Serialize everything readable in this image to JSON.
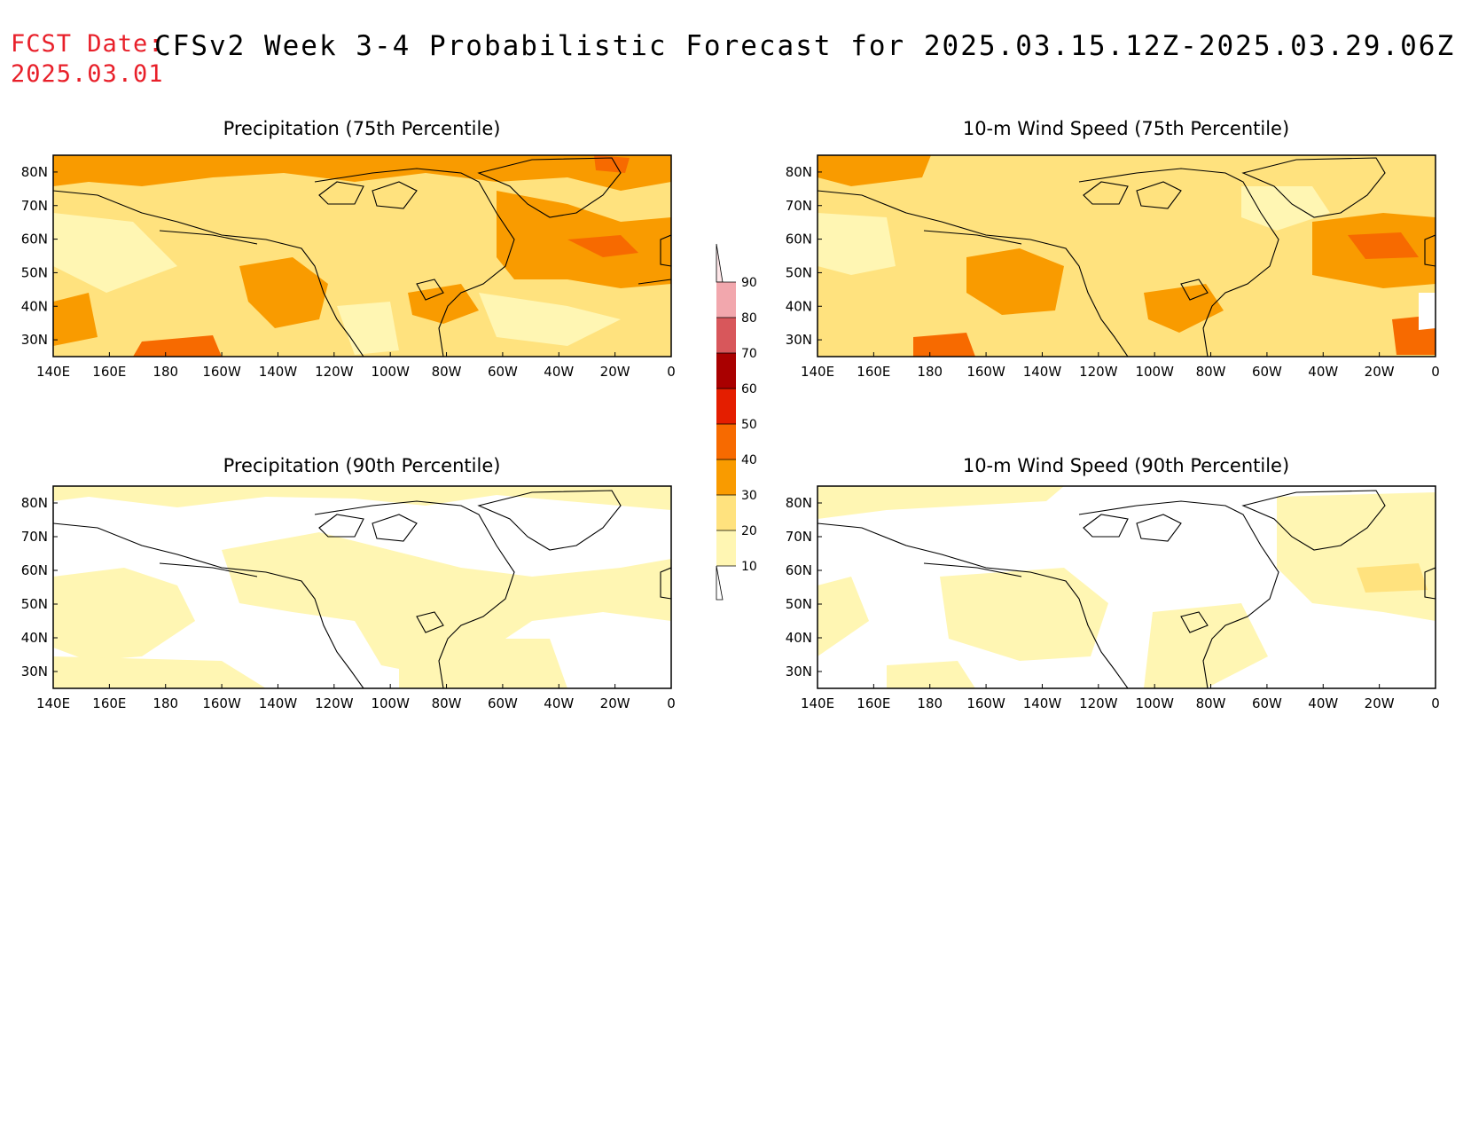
{
  "header": {
    "fcst_label": "FCST Date:",
    "fcst_date": "2025.03.01",
    "title": "CFSv2 Week 3-4 Probabilistic Forecast for 2025.03.15.12Z-2025.03.29.06Z"
  },
  "panels": [
    {
      "title": "Precipitation (75th Percentile)"
    },
    {
      "title": "10-m Wind Speed (75th Percentile)"
    },
    {
      "title": "Precipitation (90th Percentile)"
    },
    {
      "title": "10-m Wind Speed (90th Percentile)"
    }
  ],
  "axes": {
    "lon_labels": [
      "140E",
      "160E",
      "180",
      "160W",
      "140W",
      "120W",
      "100W",
      "80W",
      "60W",
      "40W",
      "20W",
      "0"
    ],
    "lat_labels": [
      "80N",
      "70N",
      "60N",
      "50N",
      "40N",
      "30N"
    ],
    "lon_range": [
      140,
      360
    ],
    "lat_range": [
      25,
      85
    ]
  },
  "colorbar": {
    "levels": [
      "10",
      "20",
      "30",
      "40",
      "50",
      "60",
      "70",
      "80",
      "90"
    ],
    "colors": [
      "#fff6b3",
      "#ffe27e",
      "#f99b00",
      "#f76a00",
      "#e41e00",
      "#a90000",
      "#d8575b",
      "#f2a7ad",
      "#fde6e8"
    ]
  },
  "colors": {
    "c10": "#fff6b3",
    "c20": "#ffe27e",
    "c30": "#f99b00",
    "c40": "#f76a00",
    "c50": "#e41e00",
    "c60": "#a90000",
    "fcst_red": "#e8202a"
  }
}
